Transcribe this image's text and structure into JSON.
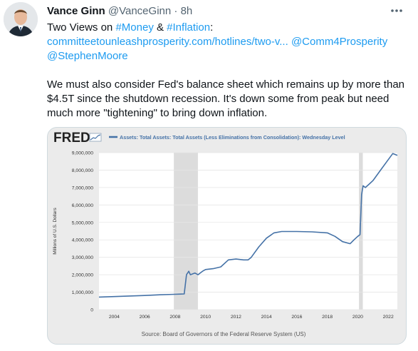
{
  "tweet": {
    "author_name": "Vance Ginn",
    "handle": "@VanceGinn",
    "separator": "·",
    "time": "8h",
    "line1_prefix": "Two Views on ",
    "hashtag_money": "#Money",
    "line1_amp": " & ",
    "hashtag_inflation": "#Inflation",
    "line1_suffix": ":",
    "url_text": "committeetounleashprosperity.com/hotlines/two-v...",
    "mention1": "@Comm4Prosperity",
    "mention2": "@StephenMoore",
    "body": "We must also consider Fed's balance sheet which remains up by more than $4.5T since the shutdown recession. It's down some from peak but need much more \"tightening\" to bring down inflation.",
    "icons": {
      "more": "more-dots-icon",
      "avatar": "avatar-photo"
    }
  },
  "chart_data": {
    "type": "line",
    "logo": "FRED",
    "series": [
      {
        "name": "Assets: Total Assets: Total Assets (Less Eliminations from Consolidation): Wednesday Level",
        "x": [
          2003.0,
          2004.0,
          2005.0,
          2006.0,
          2007.0,
          2008.0,
          2008.6,
          2008.75,
          2008.9,
          2009.0,
          2009.3,
          2009.5,
          2009.8,
          2010.0,
          2010.5,
          2011.0,
          2011.5,
          2012.0,
          2012.5,
          2012.8,
          2013.0,
          2013.5,
          2014.0,
          2014.5,
          2015.0,
          2016.0,
          2017.0,
          2018.0,
          2018.5,
          2019.0,
          2019.5,
          2019.75,
          2020.0,
          2020.15,
          2020.25,
          2020.35,
          2020.5,
          2020.75,
          2021.0,
          2021.5,
          2022.0,
          2022.3,
          2022.6
        ],
        "values": [
          720000,
          750000,
          780000,
          810000,
          850000,
          880000,
          900000,
          2000000,
          2200000,
          2000000,
          2100000,
          2000000,
          2200000,
          2300000,
          2350000,
          2450000,
          2850000,
          2900000,
          2850000,
          2850000,
          3000000,
          3600000,
          4100000,
          4400000,
          4480000,
          4480000,
          4460000,
          4400000,
          4200000,
          3900000,
          3780000,
          4000000,
          4200000,
          4300000,
          6600000,
          7100000,
          7000000,
          7200000,
          7400000,
          8000000,
          8600000,
          8950000,
          8850000
        ]
      }
    ],
    "ylabel": "Millions of U.S. Dollars",
    "ylim": [
      0,
      9000000
    ],
    "xlim": [
      2003,
      2022.6
    ],
    "yticks": [
      "0",
      "1,000,000",
      "2,000,000",
      "3,000,000",
      "4,000,000",
      "5,000,000",
      "6,000,000",
      "7,000,000",
      "8,000,000",
      "9,000,000"
    ],
    "ytick_values": [
      0,
      1000000,
      2000000,
      3000000,
      4000000,
      5000000,
      6000000,
      7000000,
      8000000,
      9000000
    ],
    "xticks": [
      "2004",
      "2006",
      "2008",
      "2010",
      "2012",
      "2014",
      "2016",
      "2018",
      "2020",
      "2022"
    ],
    "xtick_values": [
      2004,
      2006,
      2008,
      2010,
      2012,
      2014,
      2016,
      2018,
      2020,
      2022
    ],
    "recessions": [
      [
        2007.917,
        2009.5
      ],
      [
        2020.08,
        2020.33
      ]
    ],
    "source": "Source: Board of Governors of the Federal Reserve System (US)",
    "grid": true,
    "legend": "top",
    "colors": {
      "line": "#4572a7",
      "recession": "#dcdcdc",
      "grid": "#e6e6e6",
      "title": "#4572a7"
    }
  }
}
